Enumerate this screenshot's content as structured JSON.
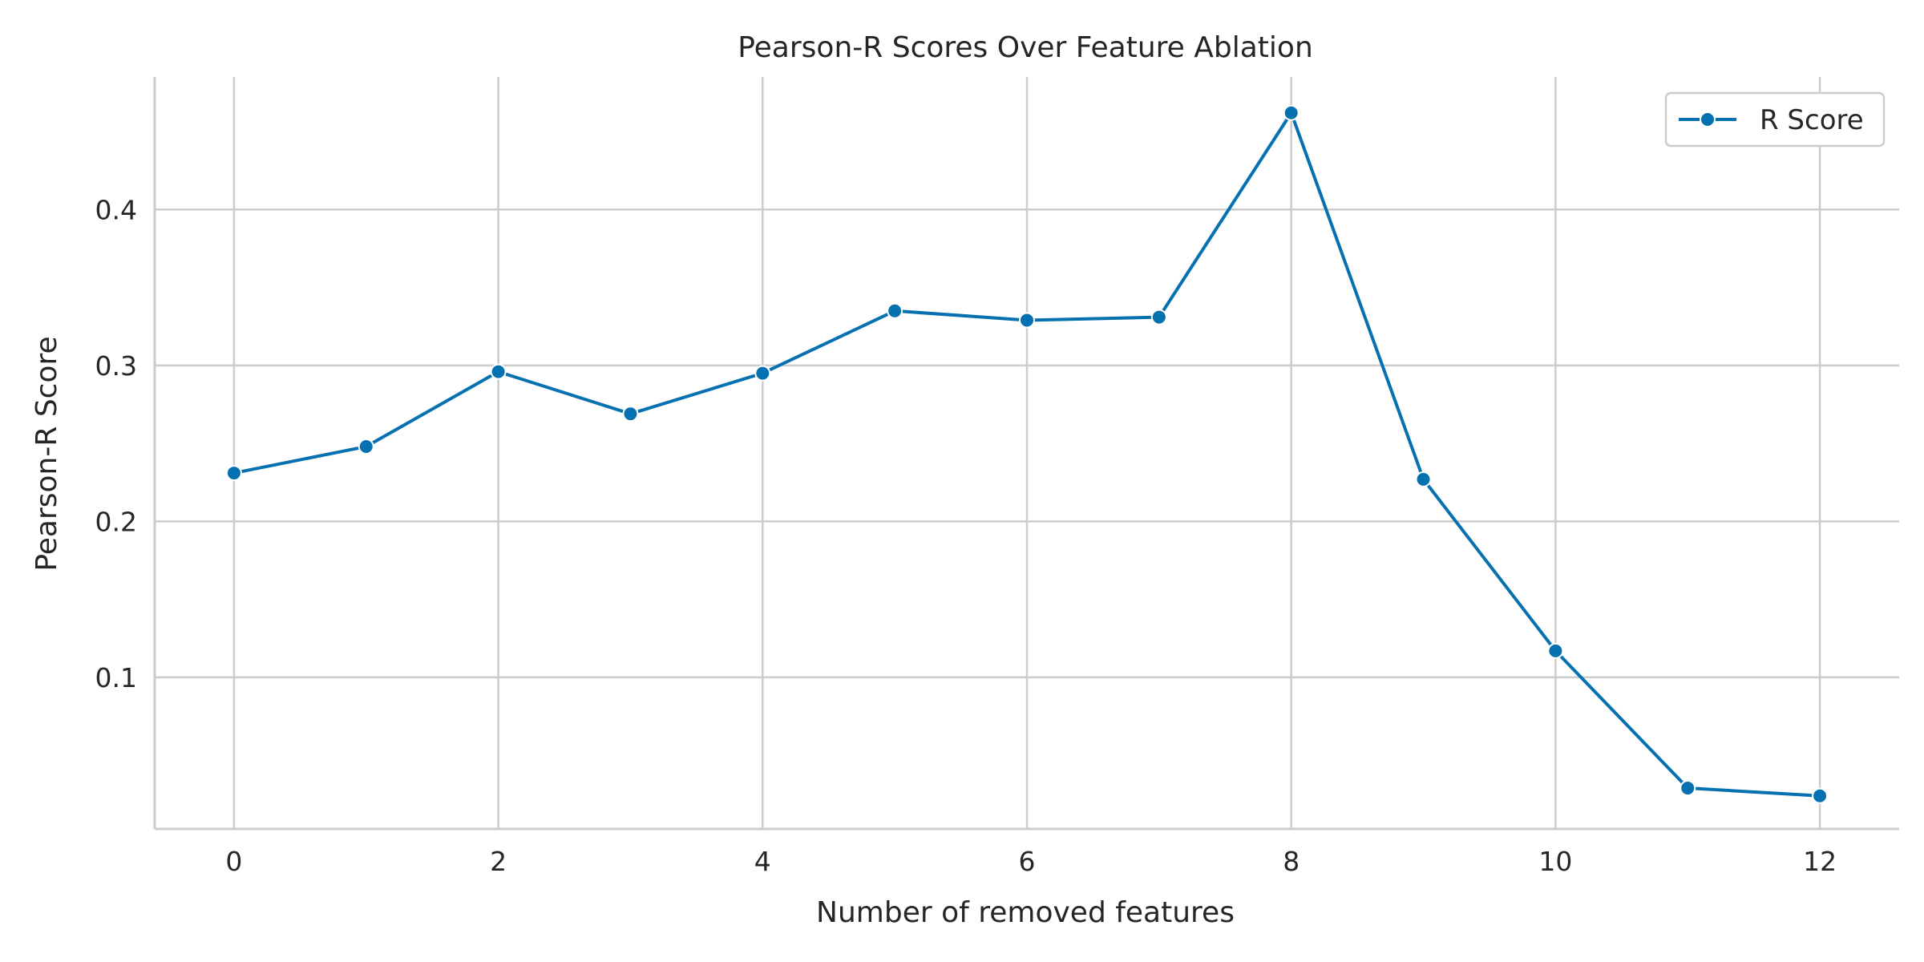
{
  "chart_data": {
    "type": "line",
    "title": "Pearson-R Scores Over Feature Ablation",
    "xlabel": "Number of removed features",
    "ylabel": "Pearson-R Score",
    "xlim": [
      -0.6,
      12.6
    ],
    "ylim": [
      0.0028,
      0.485
    ],
    "xticks": [
      0,
      2,
      4,
      6,
      8,
      10,
      12
    ],
    "yticks": [
      0.1,
      0.2,
      0.3,
      0.4
    ],
    "grid": true,
    "legend_position": "top-right",
    "series": [
      {
        "name": "R Score",
        "color": "#0571b0",
        "marker": "circle",
        "x": [
          0,
          1,
          2,
          3,
          4,
          5,
          6,
          7,
          8,
          9,
          10,
          11,
          12
        ],
        "y": [
          0.231,
          0.248,
          0.296,
          0.269,
          0.295,
          0.335,
          0.329,
          0.331,
          0.462,
          0.227,
          0.117,
          0.029,
          0.024
        ]
      }
    ]
  }
}
